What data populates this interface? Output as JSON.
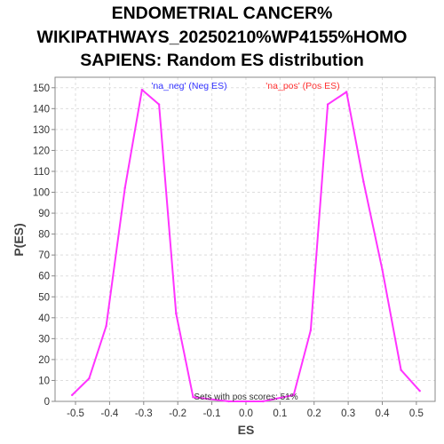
{
  "chart_data": {
    "type": "line",
    "title": "ENDOMETRIAL CANCER% WIKIPATHWAYS_20250210%WP4155%HOMO SAPIENS: Random ES distribution",
    "title_lines": [
      "ENDOMETRIAL CANCER%",
      "WIKIPATHWAYS_20250210%WP4155%HOMO",
      "SAPIENS: Random ES distribution"
    ],
    "xlabel": "ES",
    "ylabel": "P(ES)",
    "xlim": [
      -0.56,
      0.555
    ],
    "ylim": [
      0,
      155
    ],
    "x_ticks": [
      -0.5,
      -0.4,
      -0.3,
      -0.2,
      -0.1,
      0.0,
      0.1,
      0.2,
      0.3,
      0.4,
      0.5
    ],
    "x_tick_labels": [
      "-0.5",
      "-0.4",
      "-0.3",
      "-0.2",
      "-0.1",
      "0.0",
      "0.1",
      "0.2",
      "0.3",
      "0.4",
      "0.5"
    ],
    "y_ticks": [
      0,
      10,
      20,
      30,
      40,
      50,
      60,
      70,
      80,
      90,
      100,
      110,
      120,
      130,
      140,
      150
    ],
    "y_tick_labels": [
      "0",
      "10",
      "20",
      "30",
      "40",
      "50",
      "60",
      "70",
      "80",
      "90",
      "100",
      "110",
      "120",
      "130",
      "140",
      "150"
    ],
    "grid": true,
    "line_color": "#ff33ff",
    "annotations": {
      "neg_label": "'na_neg' (Neg ES)",
      "neg_color": "#3333ff",
      "pos_label": "'na_pos' (Pos ES)",
      "pos_color": "#ff3333",
      "footnote": "Sets with pos scores: 51%"
    },
    "series": [
      {
        "values": [
          [
            -0.51,
            3
          ],
          [
            -0.46,
            11
          ],
          [
            -0.41,
            36
          ],
          [
            -0.355,
            102
          ],
          [
            -0.305,
            149
          ],
          [
            -0.255,
            142
          ],
          [
            -0.205,
            42
          ],
          [
            -0.155,
            2
          ],
          [
            -0.05,
            0
          ],
          [
            0.0,
            0
          ],
          [
            0.05,
            0
          ],
          [
            0.14,
            3
          ],
          [
            0.19,
            34
          ],
          [
            0.24,
            142
          ],
          [
            0.295,
            148
          ],
          [
            0.345,
            105
          ],
          [
            0.4,
            63
          ],
          [
            0.455,
            15
          ],
          [
            0.51,
            5
          ]
        ]
      }
    ]
  }
}
